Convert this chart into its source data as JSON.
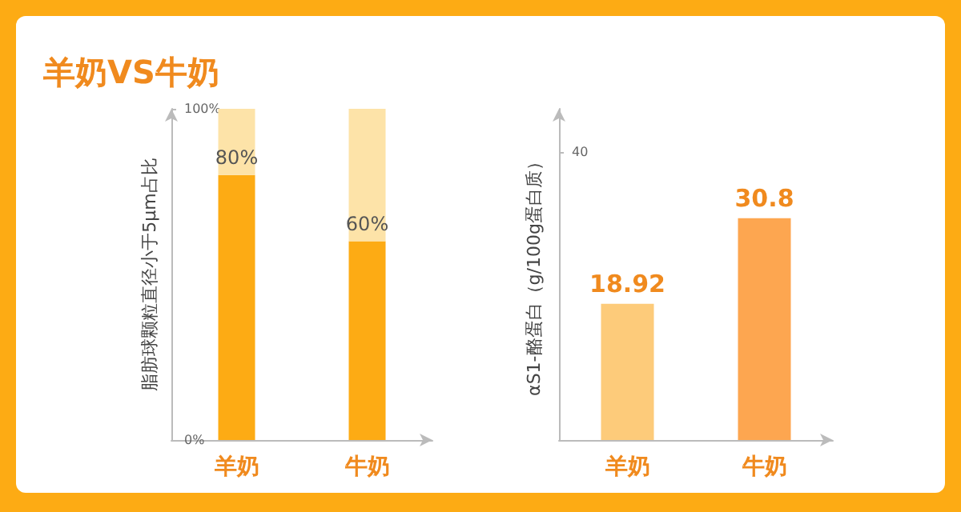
{
  "chart_data": [
    {
      "type": "bar",
      "title": "羊奶VS牛奶",
      "ylabel": "脂肪球颗粒直径小于5μm占比",
      "categories": [
        "羊奶",
        "牛奶"
      ],
      "stacked": true,
      "series": [
        {
          "color": "#fdab14",
          "values": [
            80,
            60
          ],
          "value_labels": [
            "80%",
            "60%"
          ]
        },
        {
          "color": "#fde3a8",
          "values": [
            20,
            40
          ]
        }
      ],
      "ylim": [
        0,
        100
      ],
      "yticks": [
        {
          "value": 0,
          "label": "0%"
        },
        {
          "value": 100,
          "label": "100%"
        }
      ]
    },
    {
      "type": "bar",
      "ylabel": "αS1-酪蛋白（g/100g蛋白质）",
      "categories": [
        "羊奶",
        "牛奶"
      ],
      "values": [
        18.92,
        30.8
      ],
      "colors": [
        "#fdcb7a",
        "#fda650"
      ],
      "data_labels": true,
      "ylim": [
        0,
        46
      ],
      "yticks": [
        40
      ]
    }
  ]
}
